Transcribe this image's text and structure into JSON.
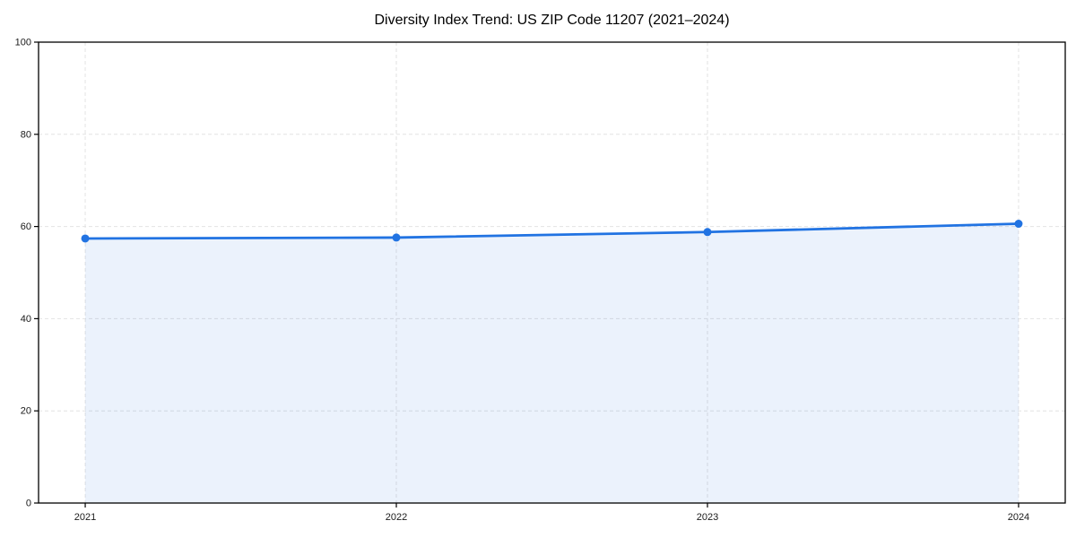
{
  "figure": {
    "background": "#ffffff"
  },
  "chart_data": {
    "type": "line",
    "title": "Diversity Index Trend: US ZIP Code 11207 (2021–2024)",
    "x": [
      2021,
      2022,
      2023,
      2024
    ],
    "xtick_labels": [
      "2021",
      "2022",
      "2023",
      "2024"
    ],
    "series": [
      {
        "name": "Diversity Index",
        "values": [
          57.4,
          57.6,
          58.8,
          60.6
        ]
      }
    ],
    "xlabel": "",
    "ylabel": "",
    "xlim": [
      2020.85,
      2024.15
    ],
    "ylim": [
      0,
      100
    ],
    "yticks": [
      0,
      20,
      40,
      60,
      80,
      100
    ],
    "grid": true,
    "grid_style": "dashed",
    "legend": "none",
    "area_fill": true,
    "marker": "circle",
    "colors": {
      "line": "#2173e2",
      "marker": "#2173e2",
      "fill": "#2173e2",
      "fill_opacity": 0.09,
      "grid": "#e2e2e2",
      "axis": "#000000",
      "tick_label": "#1a1a1a",
      "title": "#000000"
    }
  }
}
